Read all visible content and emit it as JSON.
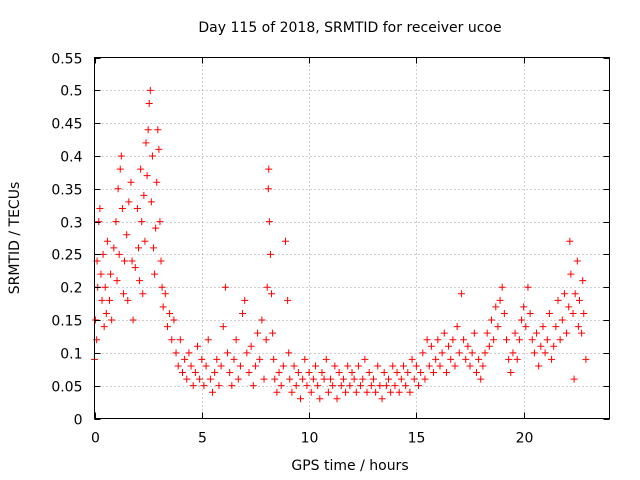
{
  "chart_data": {
    "type": "scatter",
    "title": "Day 115 of 2018, SRMTID for receiver ucoe",
    "xlabel": "GPS time / hours",
    "ylabel": "SRMTID / TECUs",
    "xlim": [
      0,
      24
    ],
    "ylim": [
      0,
      0.55
    ],
    "x_ticks": [
      0,
      5,
      10,
      15,
      20
    ],
    "x_tick_labels": [
      "0",
      "5",
      "10",
      "15",
      "20"
    ],
    "y_ticks": [
      0,
      0.05,
      0.1,
      0.15,
      0.2,
      0.25,
      0.3,
      0.35,
      0.4,
      0.45,
      0.5,
      0.55
    ],
    "y_tick_labels": [
      "0",
      "0.05",
      "0.1",
      "0.15",
      "0.2",
      "0.25",
      "0.3",
      "0.35",
      "0.4",
      "0.45",
      "0.5",
      "0.55"
    ],
    "grid": true,
    "marker": "+",
    "color": "#ff0000",
    "series": [
      {
        "name": "SRMTID",
        "points": [
          [
            0.0,
            0.09
          ],
          [
            0.05,
            0.15
          ],
          [
            0.1,
            0.12
          ],
          [
            0.12,
            0.24
          ],
          [
            0.15,
            0.2
          ],
          [
            0.2,
            0.3
          ],
          [
            0.25,
            0.32
          ],
          [
            0.3,
            0.22
          ],
          [
            0.35,
            0.18
          ],
          [
            0.4,
            0.25
          ],
          [
            0.45,
            0.14
          ],
          [
            0.5,
            0.2
          ],
          [
            0.55,
            0.16
          ],
          [
            0.6,
            0.27
          ],
          [
            0.7,
            0.18
          ],
          [
            0.75,
            0.22
          ],
          [
            0.8,
            0.15
          ],
          [
            0.9,
            0.26
          ],
          [
            1.0,
            0.3
          ],
          [
            1.05,
            0.21
          ],
          [
            1.1,
            0.35
          ],
          [
            1.15,
            0.25
          ],
          [
            1.2,
            0.38
          ],
          [
            1.25,
            0.4
          ],
          [
            1.3,
            0.32
          ],
          [
            1.35,
            0.19
          ],
          [
            1.4,
            0.24
          ],
          [
            1.5,
            0.28
          ],
          [
            1.55,
            0.18
          ],
          [
            1.6,
            0.33
          ],
          [
            1.7,
            0.36
          ],
          [
            1.75,
            0.24
          ],
          [
            1.8,
            0.15
          ],
          [
            1.9,
            0.23
          ],
          [
            2.0,
            0.32
          ],
          [
            2.05,
            0.26
          ],
          [
            2.1,
            0.21
          ],
          [
            2.15,
            0.38
          ],
          [
            2.2,
            0.3
          ],
          [
            2.25,
            0.19
          ],
          [
            2.3,
            0.34
          ],
          [
            2.35,
            0.27
          ],
          [
            2.4,
            0.42
          ],
          [
            2.45,
            0.37
          ],
          [
            2.5,
            0.44
          ],
          [
            2.55,
            0.48
          ],
          [
            2.6,
            0.5
          ],
          [
            2.65,
            0.33
          ],
          [
            2.7,
            0.4
          ],
          [
            2.75,
            0.26
          ],
          [
            2.8,
            0.22
          ],
          [
            2.85,
            0.29
          ],
          [
            2.9,
            0.36
          ],
          [
            2.95,
            0.44
          ],
          [
            3.0,
            0.41
          ],
          [
            3.05,
            0.3
          ],
          [
            3.1,
            0.24
          ],
          [
            3.15,
            0.2
          ],
          [
            3.2,
            0.17
          ],
          [
            3.3,
            0.19
          ],
          [
            3.4,
            0.14
          ],
          [
            3.5,
            0.16
          ],
          [
            3.6,
            0.12
          ],
          [
            3.7,
            0.15
          ],
          [
            3.8,
            0.1
          ],
          [
            3.9,
            0.08
          ],
          [
            4.0,
            0.12
          ],
          [
            4.1,
            0.07
          ],
          [
            4.2,
            0.09
          ],
          [
            4.3,
            0.06
          ],
          [
            4.4,
            0.1
          ],
          [
            4.5,
            0.08
          ],
          [
            4.6,
            0.05
          ],
          [
            4.7,
            0.07
          ],
          [
            4.8,
            0.11
          ],
          [
            4.9,
            0.06
          ],
          [
            5.0,
            0.09
          ],
          [
            5.1,
            0.05
          ],
          [
            5.2,
            0.08
          ],
          [
            5.3,
            0.12
          ],
          [
            5.4,
            0.06
          ],
          [
            5.5,
            0.04
          ],
          [
            5.6,
            0.07
          ],
          [
            5.7,
            0.09
          ],
          [
            5.8,
            0.05
          ],
          [
            5.9,
            0.08
          ],
          [
            6.0,
            0.14
          ],
          [
            6.1,
            0.2
          ],
          [
            6.2,
            0.1
          ],
          [
            6.3,
            0.07
          ],
          [
            6.4,
            0.05
          ],
          [
            6.5,
            0.09
          ],
          [
            6.6,
            0.12
          ],
          [
            6.7,
            0.06
          ],
          [
            6.8,
            0.08
          ],
          [
            6.9,
            0.16
          ],
          [
            7.0,
            0.18
          ],
          [
            7.1,
            0.1
          ],
          [
            7.2,
            0.07
          ],
          [
            7.3,
            0.11
          ],
          [
            7.4,
            0.05
          ],
          [
            7.5,
            0.08
          ],
          [
            7.6,
            0.13
          ],
          [
            7.7,
            0.09
          ],
          [
            7.8,
            0.15
          ],
          [
            7.9,
            0.06
          ],
          [
            8.0,
            0.12
          ],
          [
            8.05,
            0.2
          ],
          [
            8.1,
            0.35
          ],
          [
            8.12,
            0.38
          ],
          [
            8.15,
            0.3
          ],
          [
            8.2,
            0.25
          ],
          [
            8.25,
            0.19
          ],
          [
            8.3,
            0.13
          ],
          [
            8.35,
            0.09
          ],
          [
            8.4,
            0.06
          ],
          [
            8.5,
            0.04
          ],
          [
            8.6,
            0.07
          ],
          [
            8.7,
            0.05
          ],
          [
            8.8,
            0.08
          ],
          [
            8.9,
            0.27
          ],
          [
            9.0,
            0.18
          ],
          [
            9.05,
            0.1
          ],
          [
            9.1,
            0.06
          ],
          [
            9.2,
            0.04
          ],
          [
            9.3,
            0.08
          ],
          [
            9.4,
            0.05
          ],
          [
            9.5,
            0.07
          ],
          [
            9.6,
            0.03
          ],
          [
            9.7,
            0.06
          ],
          [
            9.8,
            0.09
          ],
          [
            9.9,
            0.05
          ],
          [
            10.0,
            0.07
          ],
          [
            10.1,
            0.04
          ],
          [
            10.2,
            0.06
          ],
          [
            10.3,
            0.08
          ],
          [
            10.4,
            0.05
          ],
          [
            10.5,
            0.03
          ],
          [
            10.6,
            0.07
          ],
          [
            10.7,
            0.06
          ],
          [
            10.8,
            0.09
          ],
          [
            10.9,
            0.04
          ],
          [
            11.0,
            0.06
          ],
          [
            11.1,
            0.05
          ],
          [
            11.2,
            0.08
          ],
          [
            11.3,
            0.03
          ],
          [
            11.4,
            0.07
          ],
          [
            11.5,
            0.05
          ],
          [
            11.6,
            0.06
          ],
          [
            11.7,
            0.04
          ],
          [
            11.8,
            0.08
          ],
          [
            11.9,
            0.05
          ],
          [
            12.0,
            0.07
          ],
          [
            12.1,
            0.06
          ],
          [
            12.2,
            0.04
          ],
          [
            12.3,
            0.08
          ],
          [
            12.4,
            0.05
          ],
          [
            12.5,
            0.06
          ],
          [
            12.6,
            0.09
          ],
          [
            12.7,
            0.04
          ],
          [
            12.8,
            0.07
          ],
          [
            12.9,
            0.05
          ],
          [
            13.0,
            0.06
          ],
          [
            13.1,
            0.04
          ],
          [
            13.2,
            0.08
          ],
          [
            13.3,
            0.05
          ],
          [
            13.4,
            0.03
          ],
          [
            13.5,
            0.07
          ],
          [
            13.6,
            0.05
          ],
          [
            13.7,
            0.06
          ],
          [
            13.8,
            0.04
          ],
          [
            13.9,
            0.08
          ],
          [
            14.0,
            0.05
          ],
          [
            14.1,
            0.07
          ],
          [
            14.2,
            0.04
          ],
          [
            14.3,
            0.06
          ],
          [
            14.4,
            0.08
          ],
          [
            14.5,
            0.05
          ],
          [
            14.6,
            0.07
          ],
          [
            14.7,
            0.04
          ],
          [
            14.8,
            0.09
          ],
          [
            14.9,
            0.06
          ],
          [
            15.0,
            0.08
          ],
          [
            15.1,
            0.05
          ],
          [
            15.2,
            0.07
          ],
          [
            15.3,
            0.1
          ],
          [
            15.4,
            0.06
          ],
          [
            15.5,
            0.12
          ],
          [
            15.6,
            0.08
          ],
          [
            15.7,
            0.11
          ],
          [
            15.8,
            0.07
          ],
          [
            15.9,
            0.09
          ],
          [
            16.0,
            0.12
          ],
          [
            16.1,
            0.08
          ],
          [
            16.2,
            0.1
          ],
          [
            16.3,
            0.13
          ],
          [
            16.4,
            0.07
          ],
          [
            16.5,
            0.11
          ],
          [
            16.6,
            0.09
          ],
          [
            16.7,
            0.12
          ],
          [
            16.8,
            0.08
          ],
          [
            16.9,
            0.14
          ],
          [
            17.0,
            0.1
          ],
          [
            17.1,
            0.19
          ],
          [
            17.2,
            0.12
          ],
          [
            17.3,
            0.09
          ],
          [
            17.4,
            0.11
          ],
          [
            17.5,
            0.08
          ],
          [
            17.6,
            0.1
          ],
          [
            17.7,
            0.13
          ],
          [
            17.8,
            0.07
          ],
          [
            17.9,
            0.09
          ],
          [
            18.0,
            0.06
          ],
          [
            18.1,
            0.08
          ],
          [
            18.2,
            0.1
          ],
          [
            18.3,
            0.13
          ],
          [
            18.4,
            0.11
          ],
          [
            18.5,
            0.15
          ],
          [
            18.6,
            0.12
          ],
          [
            18.7,
            0.17
          ],
          [
            18.8,
            0.14
          ],
          [
            18.9,
            0.18
          ],
          [
            19.0,
            0.2
          ],
          [
            19.1,
            0.16
          ],
          [
            19.2,
            0.12
          ],
          [
            19.3,
            0.09
          ],
          [
            19.4,
            0.07
          ],
          [
            19.5,
            0.1
          ],
          [
            19.6,
            0.13
          ],
          [
            19.7,
            0.09
          ],
          [
            19.8,
            0.12
          ],
          [
            19.9,
            0.15
          ],
          [
            20.0,
            0.17
          ],
          [
            20.1,
            0.14
          ],
          [
            20.2,
            0.2
          ],
          [
            20.3,
            0.16
          ],
          [
            20.4,
            0.12
          ],
          [
            20.5,
            0.1
          ],
          [
            20.6,
            0.13
          ],
          [
            20.7,
            0.08
          ],
          [
            20.8,
            0.11
          ],
          [
            20.9,
            0.14
          ],
          [
            21.0,
            0.1
          ],
          [
            21.1,
            0.12
          ],
          [
            21.2,
            0.16
          ],
          [
            21.3,
            0.09
          ],
          [
            21.4,
            0.11
          ],
          [
            21.5,
            0.14
          ],
          [
            21.6,
            0.18
          ],
          [
            21.7,
            0.12
          ],
          [
            21.8,
            0.15
          ],
          [
            21.9,
            0.19
          ],
          [
            22.0,
            0.13
          ],
          [
            22.1,
            0.17
          ],
          [
            22.15,
            0.27
          ],
          [
            22.2,
            0.22
          ],
          [
            22.3,
            0.16
          ],
          [
            22.35,
            0.06
          ],
          [
            22.4,
            0.19
          ],
          [
            22.5,
            0.24
          ],
          [
            22.55,
            0.14
          ],
          [
            22.6,
            0.18
          ],
          [
            22.7,
            0.13
          ],
          [
            22.75,
            0.21
          ],
          [
            22.8,
            0.16
          ],
          [
            22.9,
            0.09
          ]
        ]
      }
    ]
  }
}
